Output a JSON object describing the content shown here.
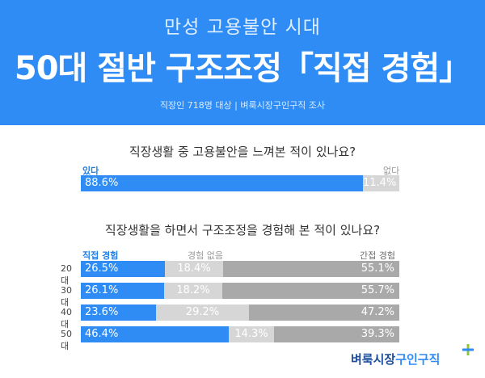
{
  "header": {
    "subtitle": "만성 고용불안 시대",
    "title": "50대 절반 구조조정「직접 경험」",
    "survey_note": "직장인 718명 대상  |  벼룩시장구인구직 조사"
  },
  "colors": {
    "header_bg": "#2f8cf5",
    "bar_blue": "#2f8cf5",
    "bar_light_gray": "#d6d6d6",
    "bar_dark_gray": "#a9a9a9"
  },
  "logo": {
    "part1": "벼룩시장",
    "part2": "구인구직",
    "icon": "plus-icon"
  },
  "chart_data": [
    {
      "type": "bar",
      "title": "직장생활 중 고용불안을 느껴본 적이 있나요?",
      "series": [
        {
          "name": "있다",
          "values": [
            88.6
          ]
        },
        {
          "name": "없다",
          "values": [
            11.4
          ]
        }
      ],
      "value_labels": [
        "88.6%",
        "11.4%"
      ],
      "unit": "%"
    },
    {
      "type": "bar",
      "title": "직장생활을 하면서 구조조정을 경험해 본 적이 있나요?",
      "categories": [
        "20대",
        "30대",
        "40대",
        "50대"
      ],
      "series": [
        {
          "name": "직접 경험",
          "values": [
            26.5,
            26.1,
            23.6,
            46.4
          ],
          "labels": [
            "26.5%",
            "26.1%",
            "23.6%",
            "46.4%"
          ]
        },
        {
          "name": "경험 없음",
          "values": [
            18.4,
            18.2,
            29.2,
            14.3
          ],
          "labels": [
            "18.4%",
            "18.2%",
            "29.2%",
            "14.3%"
          ]
        },
        {
          "name": "간접 경험",
          "values": [
            55.1,
            55.7,
            47.2,
            39.3
          ],
          "labels": [
            "55.1%",
            "55.7%",
            "47.2%",
            "39.3%"
          ]
        }
      ],
      "stacked": true,
      "unit": "%"
    }
  ]
}
